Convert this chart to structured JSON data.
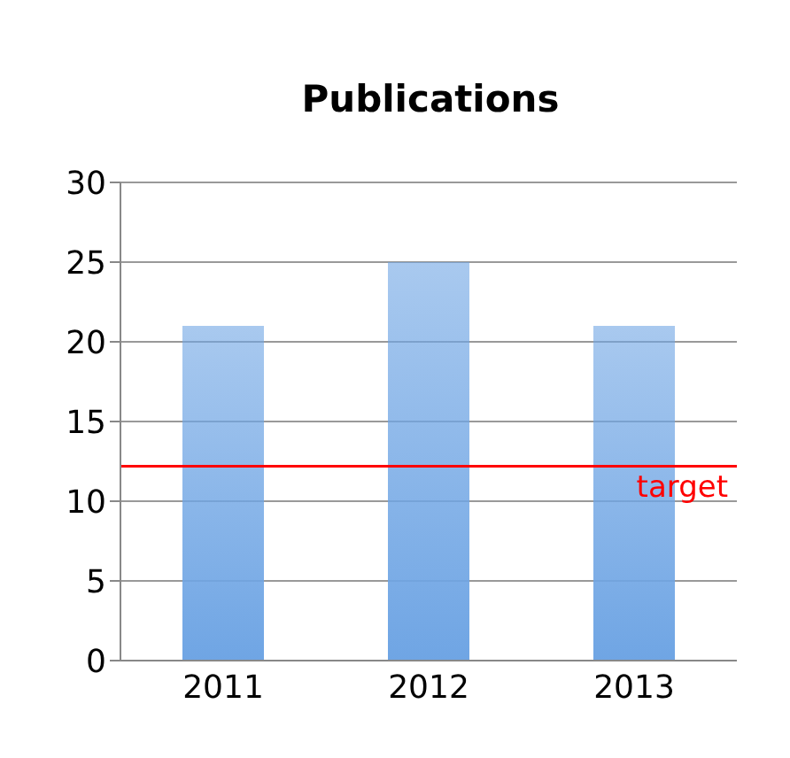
{
  "chart_data": {
    "type": "bar",
    "title": "Publications",
    "categories": [
      "2011",
      "2012",
      "2013"
    ],
    "values": [
      21,
      25,
      21
    ],
    "color": "#6fa5e4",
    "ylim": [
      0,
      30
    ],
    "yticks": [
      0,
      5,
      10,
      15,
      20,
      25,
      30
    ],
    "grid": "y",
    "ref_lines": [
      {
        "axis": "y",
        "value": 12.2,
        "label": "target",
        "color": "#ff0000"
      }
    ]
  }
}
